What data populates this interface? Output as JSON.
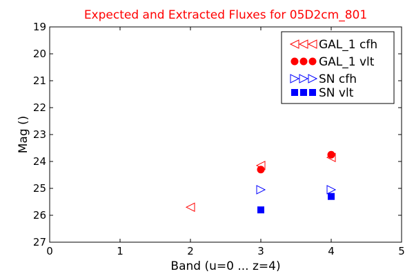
{
  "chart_data": {
    "type": "scatter",
    "title": "Expected and Extracted Fluxes for 05D2cm_801",
    "title_color": "#ff0000",
    "xlabel": "Band (u=0 ... z=4)",
    "ylabel": "Mag ()",
    "xlim": [
      0,
      5
    ],
    "ylim": [
      27,
      19
    ],
    "y_inverted": true,
    "xticks": [
      "0",
      "1",
      "2",
      "3",
      "4",
      "5"
    ],
    "yticks": [
      "19",
      "20",
      "21",
      "22",
      "23",
      "24",
      "25",
      "26",
      "27"
    ],
    "grid": false,
    "legend_position": "top-right",
    "series": [
      {
        "name": "GAL_1 cfh",
        "marker": "triangle-left",
        "color": "#ff0000",
        "filled": false,
        "points": [
          {
            "x": 2,
            "y": 25.7
          },
          {
            "x": 3,
            "y": 24.15
          },
          {
            "x": 4,
            "y": 23.85
          }
        ]
      },
      {
        "name": "GAL_1 vlt",
        "marker": "circle",
        "color": "#ff0000",
        "filled": true,
        "points": [
          {
            "x": 3,
            "y": 24.3
          },
          {
            "x": 4,
            "y": 23.75
          }
        ]
      },
      {
        "name": "SN cfh",
        "marker": "triangle-right",
        "color": "#0000ff",
        "filled": false,
        "points": [
          {
            "x": 3,
            "y": 25.05
          },
          {
            "x": 4,
            "y": 25.05
          }
        ]
      },
      {
        "name": "SN vlt",
        "marker": "square",
        "color": "#0000ff",
        "filled": true,
        "points": [
          {
            "x": 3,
            "y": 25.8
          },
          {
            "x": 4,
            "y": 25.3
          }
        ]
      }
    ]
  }
}
